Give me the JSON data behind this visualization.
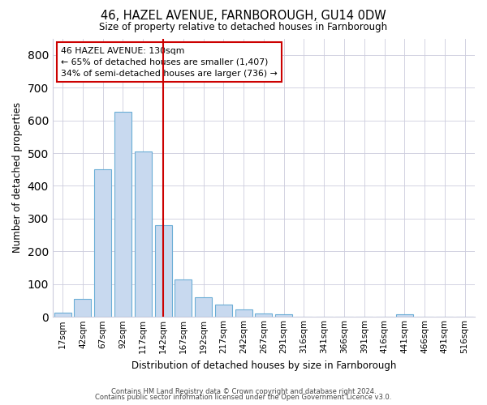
{
  "title": "46, HAZEL AVENUE, FARNBOROUGH, GU14 0DW",
  "subtitle": "Size of property relative to detached houses in Farnborough",
  "xlabel": "Distribution of detached houses by size in Farnborough",
  "ylabel": "Number of detached properties",
  "bar_labels": [
    "17sqm",
    "42sqm",
    "67sqm",
    "92sqm",
    "117sqm",
    "142sqm",
    "167sqm",
    "192sqm",
    "217sqm",
    "242sqm",
    "267sqm",
    "291sqm",
    "316sqm",
    "341sqm",
    "366sqm",
    "391sqm",
    "416sqm",
    "441sqm",
    "466sqm",
    "491sqm",
    "516sqm"
  ],
  "bar_values": [
    12,
    55,
    450,
    625,
    505,
    280,
    115,
    60,
    37,
    22,
    10,
    8,
    0,
    0,
    0,
    0,
    0,
    8,
    0,
    0,
    0
  ],
  "bar_color": "#c8d9ef",
  "bar_edge_color": "#6baed6",
  "vline_x": 5.0,
  "vline_color": "#cc0000",
  "annotation_text": "46 HAZEL AVENUE: 130sqm\n← 65% of detached houses are smaller (1,407)\n34% of semi-detached houses are larger (736) →",
  "annotation_box_color": "#ffffff",
  "annotation_box_edge": "#cc0000",
  "ylim": [
    0,
    850
  ],
  "yticks": [
    0,
    100,
    200,
    300,
    400,
    500,
    600,
    700,
    800
  ],
  "footnote1": "Contains HM Land Registry data © Crown copyright and database right 2024.",
  "footnote2": "Contains public sector information licensed under the Open Government Licence v3.0.",
  "bg_color": "#ffffff",
  "grid_color": "#ccccdd"
}
